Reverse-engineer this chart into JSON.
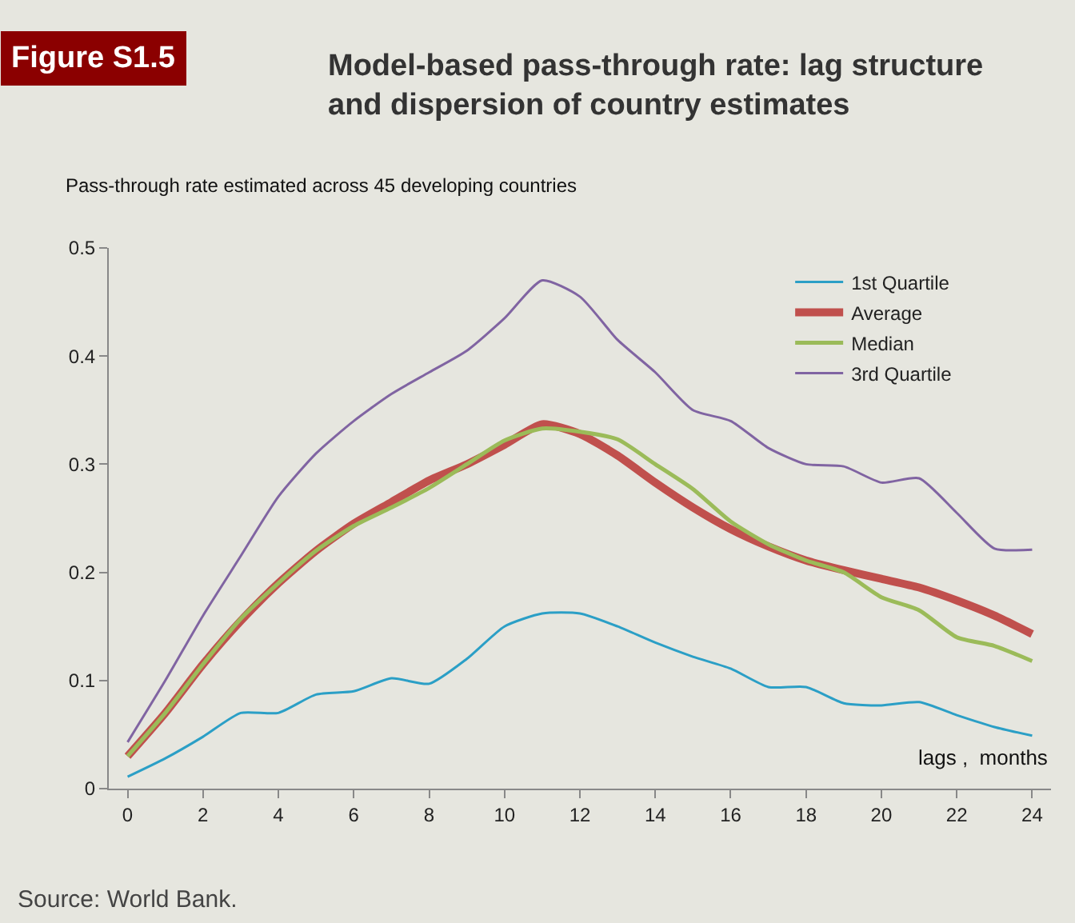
{
  "chart_data": {
    "type": "line",
    "title": "Model-based pass-through rate: lag structure\nand dispersion of country estimates",
    "subtitle": "Pass-through rate estimated across 45 developing countries",
    "xlabel": "lags ,  months",
    "annotations": [
      "Figure S1.5",
      "Source: World Bank."
    ],
    "x": [
      0,
      1,
      2,
      3,
      4,
      5,
      6,
      7,
      8,
      9,
      10,
      11,
      12,
      13,
      14,
      15,
      16,
      17,
      18,
      19,
      20,
      21,
      22,
      23,
      24
    ],
    "series": [
      {
        "name": "1st Quartile",
        "color": "#2b9fc6",
        "values": [
          0.011,
          0.028,
          0.048,
          0.07,
          0.07,
          0.087,
          0.09,
          0.102,
          0.097,
          0.12,
          0.15,
          0.162,
          0.162,
          0.15,
          0.135,
          0.122,
          0.111,
          0.094,
          0.094,
          0.079,
          0.077,
          0.08,
          0.068,
          0.057,
          0.049
        ]
      },
      {
        "name": "Average",
        "color": "#c0504d",
        "values": [
          0.03,
          0.07,
          0.115,
          0.155,
          0.19,
          0.22,
          0.245,
          0.265,
          0.285,
          0.3,
          0.318,
          0.337,
          0.328,
          0.308,
          0.283,
          0.26,
          0.24,
          0.224,
          0.211,
          0.202,
          0.194,
          0.186,
          0.174,
          0.16,
          0.143
        ]
      },
      {
        "name": "Median",
        "color": "#9bbb59",
        "values": [
          0.03,
          0.07,
          0.115,
          0.157,
          0.19,
          0.22,
          0.243,
          0.26,
          0.278,
          0.3,
          0.322,
          0.333,
          0.33,
          0.323,
          0.3,
          0.277,
          0.247,
          0.226,
          0.211,
          0.2,
          0.177,
          0.165,
          0.14,
          0.132,
          0.118
        ]
      },
      {
        "name": "3rd Quartile",
        "color": "#8064a2",
        "values": [
          0.043,
          0.1,
          0.16,
          0.215,
          0.27,
          0.31,
          0.34,
          0.365,
          0.385,
          0.405,
          0.435,
          0.47,
          0.455,
          0.415,
          0.385,
          0.35,
          0.34,
          0.315,
          0.3,
          0.298,
          0.283,
          0.287,
          0.255,
          0.222,
          0.221
        ]
      }
    ],
    "xlim": [
      -0.5,
      24.5
    ],
    "xticks": [
      0,
      2,
      4,
      6,
      8,
      10,
      12,
      14,
      16,
      18,
      20,
      22,
      24
    ],
    "ylim": [
      0,
      0.5
    ],
    "yticks": [
      0,
      0.1,
      0.2,
      0.3,
      0.4,
      0.5
    ],
    "grid": false,
    "legend": "top right",
    "marker": "none",
    "line_style": "solid"
  }
}
